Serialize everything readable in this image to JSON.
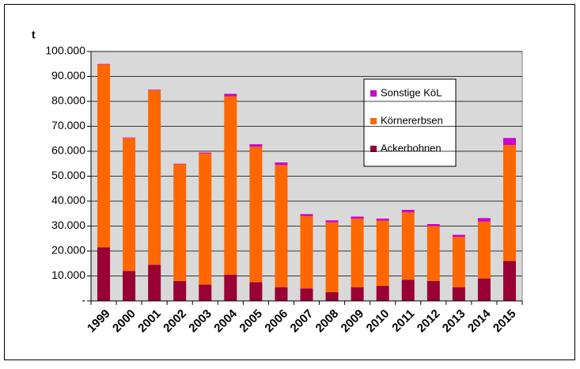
{
  "chart_data": {
    "type": "bar",
    "stacked": true,
    "y_axis_label": "t",
    "categories": [
      "1999",
      "2000",
      "2001",
      "2002",
      "2003",
      "2004",
      "2005",
      "2006",
      "2007",
      "2008",
      "2009",
      "2010",
      "2011",
      "2012",
      "2013",
      "2014",
      "2015"
    ],
    "series": [
      {
        "name": "Ackerbohnen",
        "color": "#990033",
        "values": [
          21500,
          12000,
          14500,
          8000,
          6500,
          10500,
          7500,
          5500,
          5000,
          3500,
          5500,
          6000,
          8500,
          8000,
          5500,
          9000,
          16000
        ]
      },
      {
        "name": "Körnererbsen",
        "color": "#ff6600",
        "values": [
          73300,
          53300,
          70000,
          46800,
          52700,
          71500,
          54300,
          49000,
          29000,
          28000,
          27500,
          26200,
          27000,
          22000,
          20200,
          22800,
          46500
        ]
      },
      {
        "name": "Sonstige KöL",
        "color": "#cc00cc",
        "values": [
          200,
          200,
          200,
          200,
          300,
          1000,
          1000,
          1000,
          800,
          800,
          800,
          800,
          1000,
          800,
          800,
          1400,
          2800
        ]
      }
    ],
    "ylim": [
      0,
      100000
    ],
    "yticks": [
      {
        "value": 0,
        "label": "-"
      },
      {
        "value": 10000,
        "label": "10.000"
      },
      {
        "value": 20000,
        "label": "20.000"
      },
      {
        "value": 30000,
        "label": "30.000"
      },
      {
        "value": 40000,
        "label": "40.000"
      },
      {
        "value": 50000,
        "label": "50.000"
      },
      {
        "value": 60000,
        "label": "60.000"
      },
      {
        "value": 70000,
        "label": "70.000"
      },
      {
        "value": 80000,
        "label": "80.000"
      },
      {
        "value": 90000,
        "label": "90.000"
      },
      {
        "value": 100000,
        "label": "100.000"
      }
    ],
    "grid": true,
    "legend": "upper right"
  }
}
